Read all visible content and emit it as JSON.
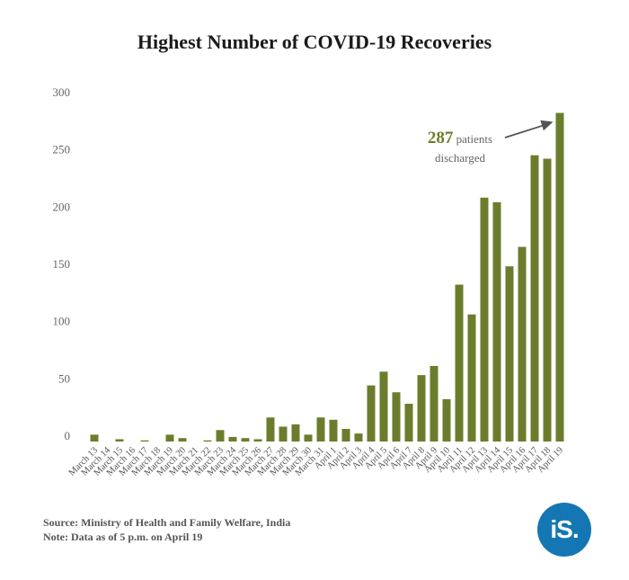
{
  "chart_data": {
    "type": "bar",
    "title": "Highest Number of COVID-19 Recoveries",
    "xlabel": "",
    "ylabel": "",
    "ylim": [
      0,
      300
    ],
    "yticks": [
      0,
      50,
      100,
      150,
      200,
      250,
      300
    ],
    "categories": [
      "March 13",
      "March 14",
      "March 15",
      "March 16",
      "March 17",
      "March 18",
      "March 19",
      "March 20",
      "March 21",
      "March 22",
      "March 23",
      "March 24",
      "March 25",
      "March 26",
      "March 27",
      "March 28",
      "March 29",
      "March 30",
      "March 31",
      "April 1",
      "April 2",
      "April 3",
      "April 4",
      "April 5",
      "April 6",
      "April 7",
      "April 8",
      "April 9",
      "April 10",
      "April 11",
      "April 12",
      "April 13",
      "April 14",
      "April 15",
      "April 16",
      "April 17",
      "April 18",
      "April 19"
    ],
    "values": [
      6,
      0,
      2,
      0,
      1,
      0,
      6,
      3,
      0,
      1,
      10,
      4,
      3,
      2,
      21,
      13,
      15,
      6,
      21,
      19,
      11,
      7,
      49,
      61,
      43,
      33,
      58,
      66,
      37,
      137,
      111,
      213,
      209,
      153,
      170,
      250,
      247,
      287
    ],
    "grid": false,
    "legend": "none",
    "bar_color": "#6b7d2c",
    "annotation": {
      "value": "287",
      "line1_rest": "patients",
      "line2": "discharged"
    }
  },
  "footer": {
    "source": "Source: Ministry of Health and Family Welfare, India",
    "note": "Note: Data as of 5 p.m. on April 19"
  },
  "logo": {
    "text": "iS.",
    "color": "#1477b3",
    "icon": "indiaspend-logo-icon"
  }
}
